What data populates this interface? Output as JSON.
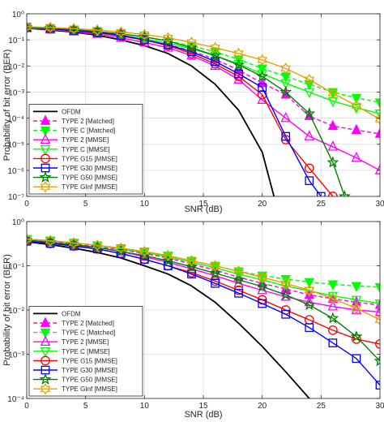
{
  "chart_data": [
    {
      "type": "line",
      "xlabel": "SNR (dB)",
      "ylabel": "Probability of bit error (BER)",
      "xlim": [
        0,
        30
      ],
      "ylim": [
        1e-07,
        1
      ],
      "yscale": "log",
      "grid": true,
      "legend_position": "bottom-left",
      "x_ticks": [
        0,
        5,
        10,
        15,
        20,
        25,
        30
      ],
      "y_tick_exponents": [
        0,
        -1,
        -2,
        -3,
        -4,
        -5,
        -6,
        -7
      ],
      "series": [
        {
          "name": "OFDM",
          "color": "#000000",
          "marker": "none",
          "dashed": false,
          "x": [
            0,
            2,
            4,
            6,
            8,
            10,
            12,
            14,
            16,
            18,
            20,
            21
          ],
          "y": [
            0.28,
            0.24,
            0.2,
            0.15,
            0.1,
            0.06,
            0.03,
            0.01,
            0.002,
            0.0002,
            5e-06,
            1e-07
          ]
        },
        {
          "name": "TYPE 2 [Matched]",
          "color": "#ff00ff",
          "marker": "triangle-up-filled",
          "dashed": true,
          "x": [
            0,
            2,
            4,
            6,
            8,
            10,
            12,
            14,
            16,
            18,
            20,
            22,
            24,
            26,
            28,
            30
          ],
          "y": [
            0.3,
            0.27,
            0.23,
            0.19,
            0.14,
            0.1,
            0.065,
            0.038,
            0.018,
            0.007,
            0.0022,
            0.0008,
            0.00012,
            5e-05,
            3.5e-05,
            2.5e-05
          ]
        },
        {
          "name": "TYPE C [Matched]",
          "color": "#00ff00",
          "marker": "triangle-down-filled",
          "dashed": true,
          "x": [
            0,
            2,
            4,
            6,
            8,
            10,
            12,
            14,
            16,
            18,
            20,
            22,
            24,
            26,
            28,
            30
          ],
          "y": [
            0.3,
            0.28,
            0.25,
            0.21,
            0.17,
            0.13,
            0.09,
            0.06,
            0.035,
            0.018,
            0.008,
            0.004,
            0.002,
            0.001,
            0.0006,
            0.0004
          ]
        },
        {
          "name": "TYPE 2 [MMSE]",
          "color": "#ff00ff",
          "marker": "triangle-up",
          "dashed": false,
          "x": [
            0,
            2,
            4,
            6,
            8,
            10,
            12,
            14,
            16,
            18,
            20,
            22,
            24,
            26,
            28,
            30
          ],
          "y": [
            0.28,
            0.25,
            0.21,
            0.17,
            0.12,
            0.08,
            0.05,
            0.025,
            0.01,
            0.003,
            0.0005,
            0.0001,
            2e-05,
            8e-06,
            3e-06,
            1e-06
          ]
        },
        {
          "name": "TYPE C [MMSE]",
          "color": "#00ff00",
          "marker": "triangle-down",
          "dashed": false,
          "x": [
            0,
            2,
            4,
            6,
            8,
            10,
            12,
            14,
            16,
            18,
            20,
            22,
            24,
            26,
            28,
            30
          ],
          "y": [
            0.3,
            0.27,
            0.24,
            0.2,
            0.15,
            0.11,
            0.075,
            0.045,
            0.025,
            0.012,
            0.005,
            0.0022,
            0.001,
            0.00045,
            0.00025,
            0.00015
          ]
        },
        {
          "name": "TYPE G15 [MMSE]",
          "color": "#ff0000",
          "marker": "circle",
          "dashed": false,
          "x": [
            0,
            2,
            4,
            6,
            8,
            10,
            12,
            14,
            16,
            18,
            20,
            22,
            24,
            26
          ],
          "y": [
            0.3,
            0.27,
            0.23,
            0.19,
            0.14,
            0.1,
            0.06,
            0.03,
            0.012,
            0.004,
            0.0008,
            1.5e-05,
            1.2e-06,
            1e-07
          ]
        },
        {
          "name": "TYPE G30 [MMSE]",
          "color": "#0000ff",
          "marker": "square",
          "dashed": false,
          "x": [
            0,
            2,
            4,
            6,
            8,
            10,
            12,
            14,
            16,
            18,
            20,
            22,
            24,
            25
          ],
          "y": [
            0.3,
            0.27,
            0.23,
            0.19,
            0.15,
            0.1,
            0.065,
            0.035,
            0.015,
            0.005,
            0.0015,
            2e-05,
            4e-07,
            1e-07
          ]
        },
        {
          "name": "TYPE G50 [MMSE]",
          "color": "#008000",
          "marker": "star",
          "dashed": false,
          "x": [
            0,
            2,
            4,
            6,
            8,
            10,
            12,
            14,
            16,
            18,
            20,
            22,
            24,
            26,
            27
          ],
          "y": [
            0.3,
            0.28,
            0.25,
            0.21,
            0.17,
            0.13,
            0.09,
            0.05,
            0.025,
            0.011,
            0.004,
            0.001,
            0.00015,
            2e-06,
            1e-07
          ]
        },
        {
          "name": "TYPE GInf [MMSE]",
          "color": "#e6a100",
          "marker": "hexagram",
          "dashed": false,
          "x": [
            0,
            2,
            4,
            6,
            8,
            10,
            12,
            14,
            16,
            18,
            20,
            22,
            24,
            26,
            28,
            30
          ],
          "y": [
            0.32,
            0.3,
            0.27,
            0.24,
            0.2,
            0.16,
            0.12,
            0.08,
            0.05,
            0.03,
            0.017,
            0.008,
            0.003,
            0.0009,
            0.0003,
            9e-05
          ]
        }
      ]
    },
    {
      "type": "line",
      "xlabel": "SNR (dB)",
      "ylabel": "Probability of bit error (BER)",
      "xlim": [
        0,
        30
      ],
      "ylim": [
        0.0001,
        1
      ],
      "yscale": "log",
      "grid": true,
      "legend_position": "bottom-left",
      "x_ticks": [
        0,
        5,
        10,
        15,
        20,
        25,
        30
      ],
      "y_tick_exponents": [
        0,
        -1,
        -2,
        -3,
        -4
      ],
      "series": [
        {
          "name": "OFDM",
          "color": "#000000",
          "marker": "none",
          "dashed": false,
          "x": [
            0,
            2,
            4,
            6,
            8,
            10,
            12,
            14,
            16,
            18,
            20,
            22,
            24
          ],
          "y": [
            0.35,
            0.3,
            0.25,
            0.2,
            0.15,
            0.1,
            0.065,
            0.035,
            0.015,
            0.005,
            0.0015,
            0.0004,
            0.0001
          ]
        },
        {
          "name": "TYPE 2 [Matched]",
          "color": "#ff00ff",
          "marker": "triangle-up-filled",
          "dashed": true,
          "x": [
            0,
            2,
            4,
            6,
            8,
            10,
            12,
            14,
            16,
            18,
            20,
            22,
            24,
            26,
            28,
            30
          ],
          "y": [
            0.38,
            0.35,
            0.31,
            0.27,
            0.23,
            0.19,
            0.15,
            0.11,
            0.08,
            0.055,
            0.04,
            0.03,
            0.022,
            0.018,
            0.015,
            0.013
          ]
        },
        {
          "name": "TYPE C [Matched]",
          "color": "#00ff00",
          "marker": "triangle-down-filled",
          "dashed": true,
          "x": [
            0,
            2,
            4,
            6,
            8,
            10,
            12,
            14,
            16,
            18,
            20,
            22,
            24,
            26,
            28,
            30
          ],
          "y": [
            0.4,
            0.37,
            0.33,
            0.29,
            0.25,
            0.21,
            0.17,
            0.13,
            0.1,
            0.075,
            0.06,
            0.05,
            0.043,
            0.038,
            0.035,
            0.033
          ]
        },
        {
          "name": "TYPE 2 [MMSE]",
          "color": "#ff00ff",
          "marker": "triangle-up",
          "dashed": false,
          "x": [
            0,
            2,
            4,
            6,
            8,
            10,
            12,
            14,
            16,
            18,
            20,
            22,
            24,
            26,
            28,
            30
          ],
          "y": [
            0.38,
            0.34,
            0.3,
            0.26,
            0.21,
            0.16,
            0.12,
            0.085,
            0.06,
            0.04,
            0.028,
            0.02,
            0.015,
            0.012,
            0.01,
            0.009
          ]
        },
        {
          "name": "TYPE C [MMSE]",
          "color": "#00ff00",
          "marker": "triangle-down",
          "dashed": false,
          "x": [
            0,
            2,
            4,
            6,
            8,
            10,
            12,
            14,
            16,
            18,
            20,
            22,
            24,
            26,
            28,
            30
          ],
          "y": [
            0.4,
            0.37,
            0.33,
            0.29,
            0.24,
            0.2,
            0.16,
            0.12,
            0.09,
            0.065,
            0.048,
            0.035,
            0.027,
            0.021,
            0.017,
            0.014
          ]
        },
        {
          "name": "TYPE G15 [MMSE]",
          "color": "#ff0000",
          "marker": "circle",
          "dashed": false,
          "x": [
            0,
            2,
            4,
            6,
            8,
            10,
            12,
            14,
            16,
            18,
            20,
            22,
            24,
            26,
            28,
            30
          ],
          "y": [
            0.36,
            0.32,
            0.28,
            0.24,
            0.19,
            0.14,
            0.1,
            0.07,
            0.045,
            0.028,
            0.017,
            0.01,
            0.006,
            0.0035,
            0.0022,
            0.0017
          ]
        },
        {
          "name": "TYPE G30 [MMSE]",
          "color": "#0000ff",
          "marker": "square",
          "dashed": false,
          "x": [
            0,
            2,
            4,
            6,
            8,
            10,
            12,
            14,
            16,
            18,
            20,
            22,
            24,
            26,
            28,
            30
          ],
          "y": [
            0.36,
            0.32,
            0.28,
            0.24,
            0.19,
            0.14,
            0.1,
            0.065,
            0.04,
            0.024,
            0.014,
            0.008,
            0.004,
            0.0018,
            0.0008,
            0.0002
          ]
        },
        {
          "name": "TYPE G50 [MMSE]",
          "color": "#008000",
          "marker": "star",
          "dashed": false,
          "x": [
            0,
            2,
            4,
            6,
            8,
            10,
            12,
            14,
            16,
            18,
            20,
            22,
            24,
            26,
            28,
            30
          ],
          "y": [
            0.38,
            0.34,
            0.3,
            0.26,
            0.21,
            0.17,
            0.13,
            0.095,
            0.068,
            0.048,
            0.034,
            0.022,
            0.013,
            0.0065,
            0.0025,
            0.0007
          ]
        },
        {
          "name": "TYPE GInf [MMSE]",
          "color": "#e6a100",
          "marker": "hexagram",
          "dashed": false,
          "x": [
            0,
            2,
            4,
            6,
            8,
            10,
            12,
            14,
            16,
            18,
            20,
            22,
            24,
            26,
            28,
            30
          ],
          "y": [
            0.4,
            0.37,
            0.33,
            0.29,
            0.25,
            0.21,
            0.17,
            0.13,
            0.1,
            0.075,
            0.055,
            0.04,
            0.028,
            0.018,
            0.011,
            0.006
          ]
        }
      ]
    }
  ]
}
